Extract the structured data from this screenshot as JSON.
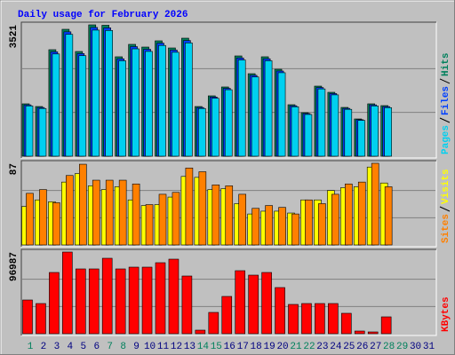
{
  "chart_data": [
    {
      "type": "bar",
      "title": "Daily usage for February 2026",
      "ylim": [
        0,
        3521
      ],
      "yticks": [
        3521
      ],
      "series": [
        {
          "name": "Hits",
          "color": "#00805c",
          "values": [
            1404,
            1332,
            2855,
            3402,
            2807,
            3521,
            3510,
            2665,
            2998,
            2926,
            3093,
            2902,
            3164,
            1332,
            1618,
            1856,
            2688,
            2212,
            2665,
            2331,
            1380,
            1166,
            1879,
            1713,
            1308,
            999,
            1404,
            1356,
            null,
            null,
            null
          ]
        },
        {
          "name": "Files",
          "color": "#0040ff",
          "values": [
            1376,
            1305,
            2798,
            3334,
            2751,
            3451,
            3440,
            2612,
            2938,
            2867,
            3031,
            2844,
            3101,
            1305,
            1586,
            1819,
            2634,
            2168,
            2612,
            2284,
            1352,
            1143,
            1841,
            1679,
            1282,
            979,
            1376,
            1329,
            null,
            null,
            null
          ]
        },
        {
          "name": "Pages",
          "color": "#00d0f0",
          "values": [
            1348,
            1279,
            2741,
            3266,
            2695,
            3380,
            3370,
            2558,
            2878,
            2809,
            2969,
            2786,
            3037,
            1279,
            1553,
            1782,
            2580,
            2124,
            2558,
            2238,
            1325,
            1119,
            1804,
            1644,
            1256,
            959,
            1348,
            1302,
            null,
            null,
            null
          ]
        }
      ]
    },
    {
      "type": "bar",
      "ylim": [
        0,
        87
      ],
      "yticks": [
        87
      ],
      "series": [
        {
          "name": "Visits",
          "color": "#ffff00",
          "values": [
            41,
            48,
            46,
            67,
            76,
            63,
            59,
            62,
            48,
            42,
            43,
            51,
            73,
            72,
            59,
            60,
            44,
            33,
            36,
            36,
            34,
            48,
            48,
            58,
            61,
            62,
            83,
            66,
            null,
            null,
            null
          ]
        },
        {
          "name": "Sites",
          "color": "#ff8000",
          "values": [
            55,
            59,
            45,
            74,
            86,
            69,
            69,
            69,
            65,
            43,
            54,
            56,
            82,
            78,
            64,
            63,
            54,
            39,
            42,
            40,
            33,
            48,
            44,
            54,
            65,
            67,
            87,
            62,
            null,
            null,
            null
          ]
        }
      ]
    },
    {
      "type": "bar",
      "ylim": [
        0,
        96987
      ],
      "yticks": [
        96987
      ],
      "series": [
        {
          "name": "KBytes",
          "color": "#ff0000",
          "values": [
            40060,
            35843,
            72740,
            96987,
            76957,
            76957,
            89608,
            76957,
            79066,
            79066,
            84337,
            88553,
            68523,
            4217,
            25301,
            44277,
            74848,
            69577,
            72740,
            54819,
            34789,
            35843,
            35843,
            35843,
            24247,
            3163,
            2108,
            20030,
            null,
            null,
            null
          ]
        }
      ],
      "categories": [
        "1",
        "2",
        "3",
        "4",
        "5",
        "6",
        "7",
        "8",
        "9",
        "10",
        "11",
        "12",
        "13",
        "14",
        "15",
        "16",
        "17",
        "18",
        "19",
        "20",
        "21",
        "22",
        "23",
        "24",
        "25",
        "26",
        "27",
        "28",
        "29",
        "30",
        "31"
      ],
      "category_colors": [
        "#00805c",
        "#000080",
        "#000080",
        "#000080",
        "#000080",
        "#000080",
        "#00805c",
        "#00805c",
        "#000080",
        "#000080",
        "#000080",
        "#000080",
        "#000080",
        "#00805c",
        "#00805c",
        "#000080",
        "#000080",
        "#000080",
        "#000080",
        "#000080",
        "#00805c",
        "#00805c",
        "#000080",
        "#000080",
        "#000080",
        "#000080",
        "#000080",
        "#00805c",
        "#00805c",
        "#000080",
        "#000080"
      ]
    }
  ]
}
